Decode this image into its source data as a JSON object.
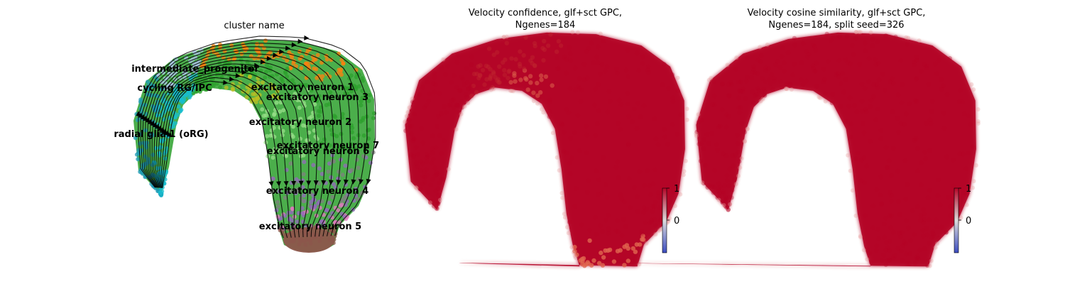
{
  "chart_data": [
    {
      "type": "scatter",
      "title": "cluster name",
      "clusters": [
        {
          "name": "intermediate_progenitor",
          "color": "#ff7f0e"
        },
        {
          "name": "cycling RG/IPC",
          "color": "#aec7e8"
        },
        {
          "name": "excitatory neuron 1",
          "color": "#2ca02c"
        },
        {
          "name": "excitatory neuron 3",
          "color": "#2ca02c"
        },
        {
          "name": "excitatory neuron 2",
          "color": "#98df8a"
        },
        {
          "name": "radial glia 1 (oRG)",
          "color": "#17becf"
        },
        {
          "name": "excitatory neuron 7",
          "color": "#9467bd"
        },
        {
          "name": "excitatory neuron 6",
          "color": "#e377c2"
        },
        {
          "name": "excitatory neuron 4",
          "color": "#9467bd"
        },
        {
          "name": "excitatory neuron 5",
          "color": "#8c564b"
        }
      ],
      "streamlines": true
    },
    {
      "type": "scatter",
      "title_line1": "Velocity confidence, glf+sct GPC,",
      "title_line2": "Ngenes=184",
      "colormap": "coolwarm",
      "point_color": "#b40426",
      "colorbar": {
        "ticks": [
          "1",
          "0"
        ],
        "range": [
          -1,
          1
        ]
      }
    },
    {
      "type": "scatter",
      "title_line1": "Velocity cosine similarity, glf+sct GPC,",
      "title_line2": "Ngenes=184, split seed=326",
      "colormap": "coolwarm",
      "point_color": "#b40426",
      "colorbar": {
        "ticks": [
          "1",
          "0"
        ],
        "range": [
          -1,
          1
        ]
      }
    }
  ]
}
